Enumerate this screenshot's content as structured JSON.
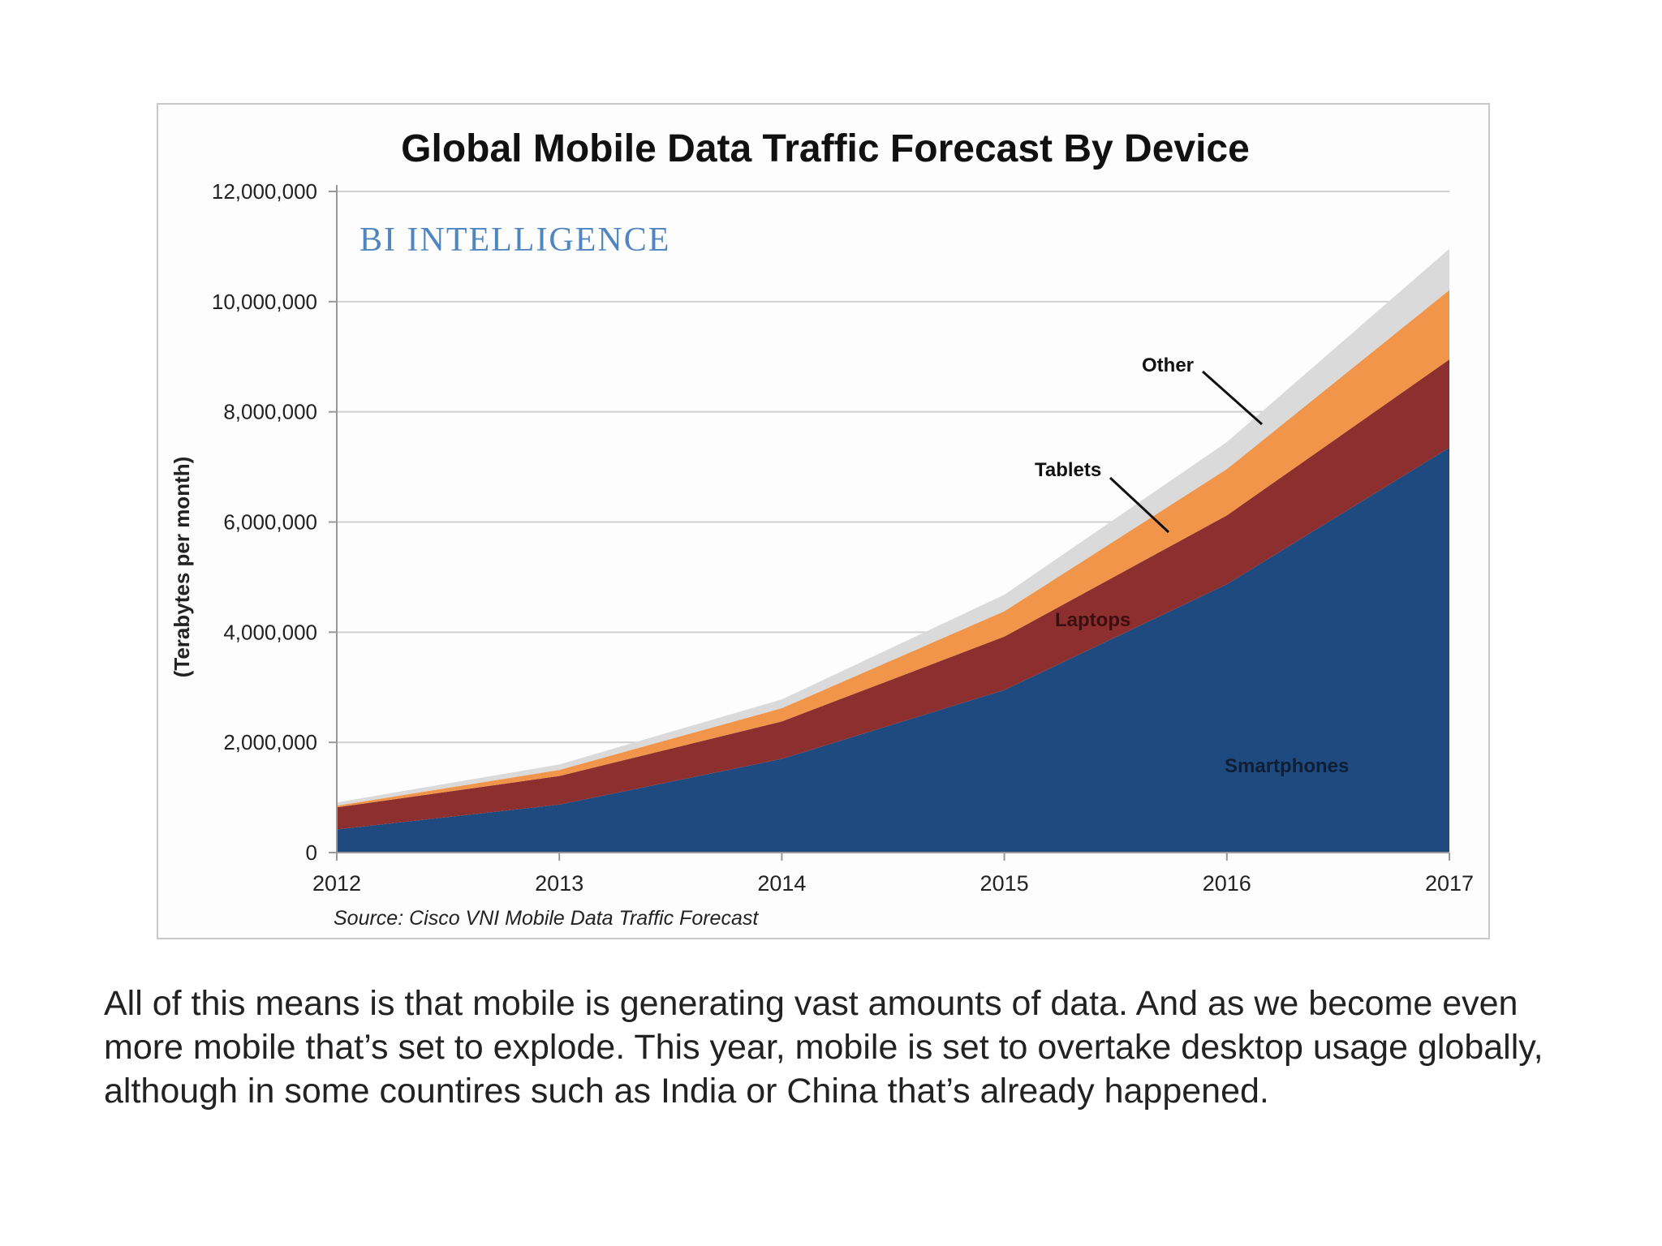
{
  "chart_data": {
    "type": "area",
    "stacked": true,
    "title": "Global Mobile Data Traffic Forecast By Device",
    "watermark": "BI Intelligence",
    "ylabel": "(Terabytes per month)",
    "xlabel": "",
    "source": "Source: Cisco VNI Mobile Data Traffic Forecast",
    "x": [
      "2012",
      "2013",
      "2014",
      "2015",
      "2016",
      "2017"
    ],
    "ylim": [
      0,
      12000000
    ],
    "yticks": [
      "0",
      "2,000,000",
      "4,000,000",
      "6,000,000",
      "8,000,000",
      "10,000,000",
      "12,000,000"
    ],
    "grid": true,
    "series": [
      {
        "name": "Smartphones",
        "color": "#1f4a7f",
        "values": [
          420000,
          870000,
          1700000,
          2950000,
          4870000,
          7350000
        ]
      },
      {
        "name": "Laptops",
        "color": "#8e2f2f",
        "values": [
          400000,
          520000,
          680000,
          970000,
          1250000,
          1600000
        ]
      },
      {
        "name": "Tablets",
        "color": "#f0954a",
        "values": [
          30000,
          110000,
          240000,
          460000,
          840000,
          1260000
        ]
      },
      {
        "name": "Other",
        "color": "#dadada",
        "values": [
          60000,
          100000,
          160000,
          300000,
          490000,
          750000
        ]
      }
    ],
    "labels": {
      "smartphones": "Smartphones",
      "laptops": "Laptops",
      "tablets": "Tablets",
      "other": "Other"
    }
  },
  "caption": "All of this means is that mobile is generating vast amounts of data. And as we become even more mobile that’s set to explode. This year, mobile is set to overtake desktop usage globally, although in some countires such as India or China that’s already happened."
}
